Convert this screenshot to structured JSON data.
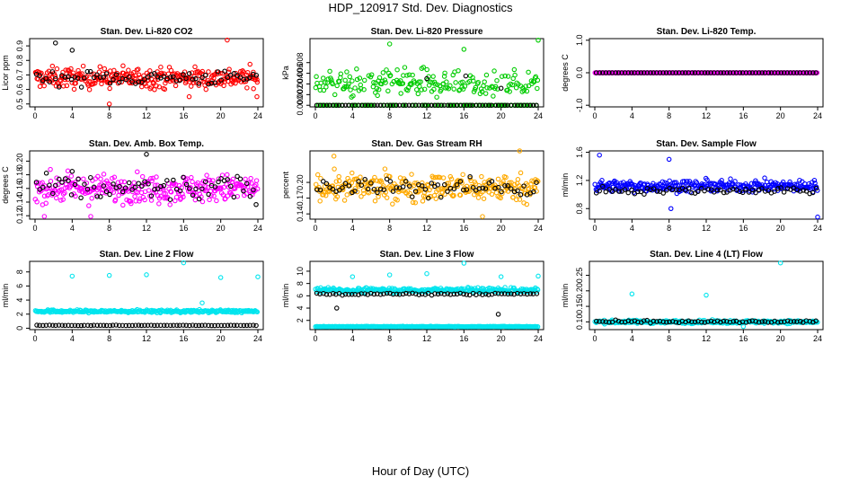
{
  "figure": {
    "title": "HDP_120917  Std. Dev. Diagnostics",
    "xlabel": "Hour of Day (UTC)"
  },
  "chart_data": [
    {
      "type": "scatter",
      "title": "Stan. Dev. Li-820 CO2",
      "ylabel": "Licor ppm",
      "xlim": [
        0,
        24
      ],
      "ylim": [
        0.48,
        0.95
      ],
      "xticks": [
        0,
        4,
        8,
        12,
        16,
        20,
        24
      ],
      "yticks": [
        0.5,
        0.6,
        0.7,
        0.8,
        0.9
      ],
      "ytick_labels": [
        "0.5",
        "0.6",
        "0.7",
        "0.8",
        "0.9"
      ],
      "series": [
        {
          "color": "#ff0000",
          "base": 0.68,
          "spread": 0.07,
          "outliers": [
            [
              16.6,
              0.55
            ],
            [
              20.7,
              0.94
            ],
            [
              23.9,
              0.55
            ],
            [
              8.0,
              0.5
            ]
          ]
        },
        {
          "color": "#000000",
          "base": 0.68,
          "spread": 0.05,
          "outliers": [
            [
              2.2,
              0.92
            ],
            [
              4.0,
              0.87
            ]
          ]
        }
      ]
    },
    {
      "type": "scatter",
      "title": "Stan. Dev. Li-820 Pressure",
      "ylabel": "kPa",
      "xlim": [
        0,
        24
      ],
      "ylim": [
        -0.0003,
        0.0125
      ],
      "xticks": [
        0,
        4,
        8,
        12,
        16,
        20,
        24
      ],
      "yticks": [
        0.0,
        0.002,
        0.004,
        0.006,
        0.008
      ],
      "ytick_labels": [
        "0.000",
        "0.002",
        "0.004",
        "0.006",
        "0.008"
      ],
      "series": [
        {
          "color": "#00cc00",
          "base": 0.004,
          "spread": 0.0025,
          "floor": 0.0,
          "outliers": [
            [
              8.0,
              0.0115
            ],
            [
              16.0,
              0.0105
            ],
            [
              24.0,
              0.0122
            ]
          ]
        },
        {
          "color": "#000000",
          "base": 0.0,
          "spread": 0.0,
          "floor": 0.0,
          "outliers": [
            [
              12.0,
              0.005
            ],
            [
              16.2,
              0.0055
            ],
            [
              20.0,
              0.0032
            ]
          ]
        }
      ]
    },
    {
      "type": "scatter",
      "title": "Stan. Dev. Li-820 Temp.",
      "ylabel": "degrees C",
      "xlim": [
        0,
        24
      ],
      "ylim": [
        -1.05,
        1.05
      ],
      "xticks": [
        0,
        4,
        8,
        12,
        16,
        20,
        24
      ],
      "yticks": [
        -1.0,
        0.0,
        1.0
      ],
      "ytick_labels": [
        "-1.0",
        "0.0",
        "1.0"
      ],
      "series": [
        {
          "color": "#ff00ff",
          "base": 0.0,
          "spread": 0.0,
          "outliers": []
        },
        {
          "color": "#000000",
          "base": 0.0,
          "spread": 0.0,
          "outliers": []
        }
      ]
    },
    {
      "type": "scatter",
      "title": "Stan. Dev. Amb. Box Temp.",
      "ylabel": "degrees C",
      "xlim": [
        0,
        24
      ],
      "ylim": [
        0.115,
        0.215
      ],
      "xticks": [
        0,
        4,
        8,
        12,
        16,
        20,
        24
      ],
      "yticks": [
        0.12,
        0.14,
        0.16,
        0.18,
        0.2
      ],
      "ytick_labels": [
        "0.12",
        "0.14",
        "0.16",
        "0.18",
        "0.20"
      ],
      "series": [
        {
          "color": "#ff00ff",
          "base": 0.16,
          "spread": 0.02,
          "outliers": [
            [
              1.0,
              0.119
            ],
            [
              6.0,
              0.119
            ]
          ]
        },
        {
          "color": "#000000",
          "base": 0.16,
          "spread": 0.018,
          "outliers": [
            [
              12.0,
              0.21
            ],
            [
              4.0,
              0.185
            ]
          ]
        }
      ]
    },
    {
      "type": "scatter",
      "title": "Stan. Dev. Gas Stream RH",
      "ylabel": "percent",
      "xlim": [
        0,
        24
      ],
      "ylim": [
        0.13,
        0.26
      ],
      "xticks": [
        0,
        4,
        8,
        12,
        16,
        20,
        24
      ],
      "yticks": [
        0.14,
        0.17,
        0.2
      ],
      "ytick_labels": [
        "0.14",
        "0.17",
        "0.20"
      ],
      "series": [
        {
          "color": "#ffaa00",
          "base": 0.19,
          "spread": 0.025,
          "outliers": [
            [
              2.0,
              0.25
            ],
            [
              22.0,
              0.26
            ],
            [
              18.0,
              0.135
            ]
          ]
        },
        {
          "color": "#000000",
          "base": 0.19,
          "spread": 0.018,
          "outliers": []
        }
      ]
    },
    {
      "type": "scatter",
      "title": "Stan. Dev. Sample Flow",
      "ylabel": "ml/min",
      "xlim": [
        0,
        24
      ],
      "ylim": [
        0.65,
        1.62
      ],
      "xticks": [
        0,
        4,
        8,
        12,
        16,
        20,
        24
      ],
      "yticks": [
        0.8,
        1.2,
        1.6
      ],
      "ytick_labels": [
        "0.8",
        "1.2",
        "1.6"
      ],
      "series": [
        {
          "color": "#0000ff",
          "base": 1.12,
          "spread": 0.08,
          "outliers": [
            [
              0.5,
              1.56
            ],
            [
              8.0,
              1.5
            ],
            [
              24.0,
              0.68
            ],
            [
              8.2,
              0.8
            ]
          ]
        },
        {
          "color": "#000000",
          "base": 1.06,
          "spread": 0.05,
          "outliers": []
        }
      ]
    },
    {
      "type": "scatter",
      "title": "Stan. Dev. Line 2 Flow",
      "ylabel": "ml/min",
      "xlim": [
        0,
        24
      ],
      "ylim": [
        -0.2,
        9.5
      ],
      "xticks": [
        0,
        4,
        8,
        12,
        16,
        20,
        24
      ],
      "yticks": [
        0,
        2,
        4,
        6,
        8
      ],
      "ytick_labels": [
        "0",
        "2",
        "4",
        "6",
        "8"
      ],
      "series": [
        {
          "color": "#00e5ee",
          "base": 2.4,
          "spread": 0.2,
          "outliers": [
            [
              4.0,
              7.4
            ],
            [
              8.0,
              7.5
            ],
            [
              12.0,
              7.6
            ],
            [
              16.0,
              9.3
            ],
            [
              20.0,
              7.2
            ],
            [
              24.0,
              7.3
            ],
            [
              18.0,
              3.6
            ]
          ]
        },
        {
          "color": "#000000",
          "base": 0.4,
          "spread": 0.03,
          "outliers": []
        }
      ]
    },
    {
      "type": "scatter",
      "title": "Stan. Dev. Line 3 Flow",
      "ylabel": "ml/min",
      "xlim": [
        0,
        24
      ],
      "ylim": [
        0.5,
        11.6
      ],
      "xticks": [
        0,
        4,
        8,
        12,
        16,
        20,
        24
      ],
      "yticks": [
        2,
        4,
        6,
        8,
        10
      ],
      "ytick_labels": [
        "2",
        "4",
        "6",
        "8",
        "10"
      ],
      "series": [
        {
          "color": "#00e5ee",
          "base": 6.9,
          "spread": 0.4,
          "low": 1.0,
          "outliers": [
            [
              4.0,
              9.1
            ],
            [
              8.0,
              9.4
            ],
            [
              12.0,
              9.6
            ],
            [
              16.0,
              11.3
            ],
            [
              20.0,
              9.1
            ],
            [
              24.0,
              9.2
            ]
          ]
        },
        {
          "color": "#000000",
          "base": 6.3,
          "spread": 0.2,
          "outliers": [
            [
              2.3,
              4.0
            ],
            [
              19.7,
              3.0
            ]
          ]
        }
      ]
    },
    {
      "type": "scatter",
      "title": "Stan. Dev. Line 4 (LT) Flow",
      "ylabel": "ml/min",
      "xlim": [
        0,
        24
      ],
      "ylim": [
        0.075,
        0.295
      ],
      "xticks": [
        0,
        4,
        8,
        12,
        16,
        20,
        24
      ],
      "yticks": [
        0.1,
        0.15,
        0.2,
        0.25
      ],
      "ytick_labels": [
        "0.10",
        "0.15",
        "0.20",
        "0.25"
      ],
      "series": [
        {
          "color": "#00e5ee",
          "base": 0.1,
          "spread": 0.005,
          "outliers": [
            [
              4.0,
              0.19
            ],
            [
              12.0,
              0.186
            ],
            [
              20.0,
              0.29
            ],
            [
              16.0,
              0.085
            ]
          ]
        },
        {
          "color": "#000000",
          "base": 0.1,
          "spread": 0.004,
          "outliers": []
        }
      ]
    }
  ]
}
